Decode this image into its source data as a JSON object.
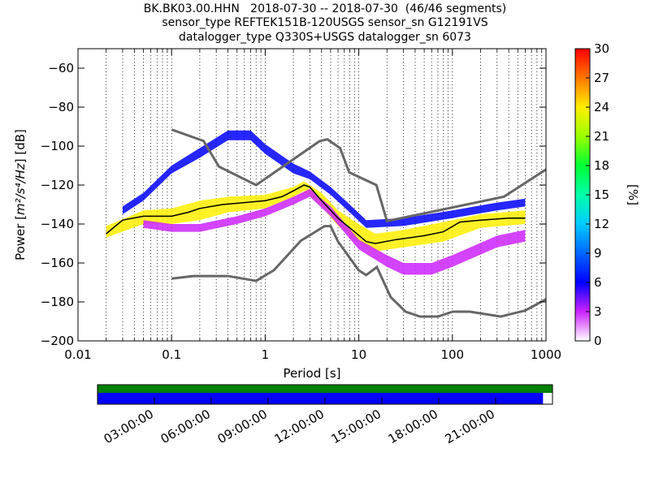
{
  "title_lines": [
    "BK.BK03.00.HHN   2018-07-30 -- 2018-07-30  (46/46 segments)",
    "sensor_type REFTEK151B-120USGS sensor_sn G12191VS",
    "datalogger_type Q330S+USGS datalogger_sn 6073"
  ],
  "colors": {
    "model_curve": "#666666",
    "mode_line": "#000000",
    "grid": "#000000",
    "coverage_top": "#008000",
    "coverage_bottom": "#0000ff"
  },
  "chart_data": [
    {
      "type": "heatmap",
      "xlabel": "Period [s]",
      "ylabel": "Power [m²/s⁴/Hz] [dB]",
      "ylabel_parts": {
        "prefix": "Power ",
        "unit": "m²/s⁴/Hz",
        "suffix": " [dB]"
      },
      "x_scale": "log",
      "xlim": [
        0.01,
        1000
      ],
      "ylim": [
        -200,
        -50
      ],
      "x_ticks": [
        0.01,
        0.1,
        1,
        10,
        100,
        1000
      ],
      "x_tick_labels": [
        "0.01",
        "0.1",
        "1",
        "10",
        "100",
        "1000"
      ],
      "y_ticks": [
        -200,
        -180,
        -160,
        -140,
        -120,
        -100,
        -80,
        -60
      ],
      "y_tick_labels": [
        "−200",
        "−180",
        "−160",
        "−140",
        "−120",
        "−100",
        "−80",
        "−60"
      ],
      "grid": "dotted vertical at log minor periods",
      "colorbar": {
        "label": "[%]",
        "range": [
          0,
          30
        ],
        "ticks": [
          0,
          3,
          6,
          9,
          12,
          15,
          18,
          21,
          24,
          27,
          30
        ],
        "tick_labels": [
          "0",
          "3",
          "6",
          "9",
          "12",
          "15",
          "18",
          "21",
          "24",
          "27",
          "30"
        ],
        "colormap": "pqlx"
      },
      "new_high_noise_model": [
        [
          0.1,
          -91.5
        ],
        [
          0.22,
          -97.4
        ],
        [
          0.32,
          -110.5
        ],
        [
          0.8,
          -120
        ],
        [
          3.8,
          -97.5
        ],
        [
          4.6,
          -96.5
        ],
        [
          6.3,
          -101
        ],
        [
          7.9,
          -113.5
        ],
        [
          15.4,
          -120
        ],
        [
          20,
          -138.5
        ],
        [
          354.8,
          -126
        ],
        [
          1000,
          -112
        ]
      ],
      "new_low_noise_model": [
        [
          0.1,
          -168
        ],
        [
          0.17,
          -166.7
        ],
        [
          0.4,
          -166.7
        ],
        [
          0.8,
          -169.2
        ],
        [
          1.24,
          -163.7
        ],
        [
          2.4,
          -148.6
        ],
        [
          4.3,
          -141.1
        ],
        [
          5,
          -141.1
        ],
        [
          6,
          -149
        ],
        [
          10,
          -163.8
        ],
        [
          12,
          -166.2
        ],
        [
          15.6,
          -162.1
        ],
        [
          21.9,
          -177.5
        ],
        [
          31.6,
          -185
        ],
        [
          45,
          -187.5
        ],
        [
          70,
          -187.5
        ],
        [
          101,
          -185
        ],
        [
          154,
          -185
        ],
        [
          328,
          -187.5
        ],
        [
          600,
          -184.4
        ],
        [
          1000,
          -178.6
        ]
      ],
      "mode_curve": [
        [
          0.02,
          -145
        ],
        [
          0.03,
          -138
        ],
        [
          0.05,
          -136
        ],
        [
          0.1,
          -136
        ],
        [
          0.15,
          -134
        ],
        [
          0.2,
          -132
        ],
        [
          0.35,
          -130
        ],
        [
          0.6,
          -129
        ],
        [
          1,
          -128
        ],
        [
          1.5,
          -126
        ],
        [
          2,
          -123
        ],
        [
          2.6,
          -120
        ],
        [
          3,
          -121
        ],
        [
          4,
          -128
        ],
        [
          6,
          -137
        ],
        [
          9,
          -144
        ],
        [
          12,
          -149
        ],
        [
          15,
          -150
        ],
        [
          25,
          -148
        ],
        [
          50,
          -146
        ],
        [
          80,
          -144
        ],
        [
          120,
          -139
        ],
        [
          200,
          -138
        ],
        [
          400,
          -137
        ],
        [
          600,
          -137
        ]
      ],
      "psd_distribution_bands": [
        {
          "name": "core",
          "percent": 22,
          "lower": [
            [
              0.02,
              -147
            ],
            [
              0.05,
              -140
            ],
            [
              0.1,
              -140
            ],
            [
              0.2,
              -138
            ],
            [
              0.4,
              -134
            ],
            [
              1,
              -132
            ],
            [
              2,
              -126
            ],
            [
              2.6,
              -123
            ],
            [
              4,
              -131
            ],
            [
              6,
              -141
            ],
            [
              10,
              -149
            ],
            [
              15,
              -154
            ],
            [
              30,
              -152
            ],
            [
              80,
              -149
            ],
            [
              200,
              -142
            ],
            [
              600,
              -140
            ]
          ],
          "upper": [
            [
              0.02,
              -141
            ],
            [
              0.05,
              -133
            ],
            [
              0.1,
              -132
            ],
            [
              0.2,
              -128
            ],
            [
              0.4,
              -126
            ],
            [
              1,
              -125
            ],
            [
              2,
              -121
            ],
            [
              2.6,
              -118
            ],
            [
              4,
              -124
            ],
            [
              6,
              -133
            ],
            [
              10,
              -140
            ],
            [
              15,
              -145
            ],
            [
              30,
              -143
            ],
            [
              80,
              -139
            ],
            [
              200,
              -135
            ],
            [
              600,
              -133
            ]
          ]
        },
        {
          "name": "spread-high",
          "percent": 4,
          "lower": [
            [
              0.03,
              -135
            ],
            [
              0.05,
              -128
            ],
            [
              0.1,
              -114
            ],
            [
              0.2,
              -106
            ],
            [
              0.4,
              -97
            ],
            [
              0.7,
              -97
            ],
            [
              1,
              -104
            ],
            [
              2,
              -114
            ],
            [
              3,
              -117
            ],
            [
              5,
              -125
            ],
            [
              8,
              -134
            ],
            [
              12,
              -142
            ],
            [
              30,
              -141
            ],
            [
              100,
              -137
            ],
            [
              300,
              -133
            ],
            [
              600,
              -131
            ]
          ],
          "upper": [
            [
              0.03,
              -131
            ],
            [
              0.05,
              -124
            ],
            [
              0.1,
              -110
            ],
            [
              0.2,
              -101
            ],
            [
              0.4,
              -92
            ],
            [
              0.7,
              -92
            ],
            [
              1,
              -99
            ],
            [
              2,
              -109
            ],
            [
              3,
              -113
            ],
            [
              5,
              -121
            ],
            [
              8,
              -130
            ],
            [
              12,
              -138
            ],
            [
              30,
              -137
            ],
            [
              100,
              -133
            ],
            [
              300,
              -129
            ],
            [
              600,
              -127
            ]
          ]
        },
        {
          "name": "spread-low",
          "percent": 3,
          "lower": [
            [
              0.05,
              -142
            ],
            [
              0.1,
              -144
            ],
            [
              0.2,
              -144
            ],
            [
              0.5,
              -140
            ],
            [
              1,
              -136
            ],
            [
              2,
              -130
            ],
            [
              3,
              -126
            ],
            [
              5,
              -136
            ],
            [
              10,
              -153
            ],
            [
              20,
              -162
            ],
            [
              30,
              -166
            ],
            [
              60,
              -166
            ],
            [
              100,
              -162
            ],
            [
              300,
              -152
            ],
            [
              600,
              -149
            ]
          ],
          "upper": [
            [
              0.05,
              -138
            ],
            [
              0.1,
              -140
            ],
            [
              0.2,
              -140
            ],
            [
              0.5,
              -136
            ],
            [
              1,
              -132
            ],
            [
              2,
              -126
            ],
            [
              3,
              -122
            ],
            [
              5,
              -131
            ],
            [
              10,
              -148
            ],
            [
              20,
              -156
            ],
            [
              30,
              -160
            ],
            [
              60,
              -160
            ],
            [
              100,
              -156
            ],
            [
              300,
              -146
            ],
            [
              600,
              -143
            ]
          ]
        }
      ]
    },
    {
      "type": "bar",
      "name": "data coverage",
      "x_ticks": [
        "03:00:00",
        "06:00:00",
        "09:00:00",
        "12:00:00",
        "15:00:00",
        "18:00:00",
        "21:00:00"
      ],
      "x_range_hours": [
        0,
        24
      ],
      "tracks": [
        {
          "color": "#008000",
          "start_hour": 0,
          "end_hour": 24
        },
        {
          "color": "#0000ff",
          "start_hour": 0,
          "end_hour": 23.5
        }
      ]
    }
  ]
}
